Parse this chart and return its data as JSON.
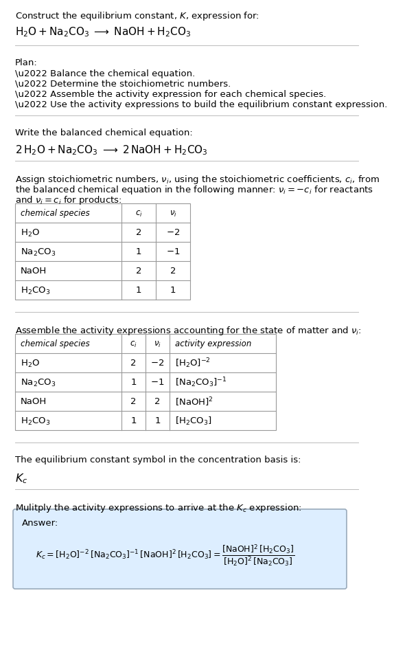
{
  "title_line1": "Construct the equilibrium constant, $K$, expression for:",
  "title_line2": "$\\mathrm{H_2O + Na_2CO_3 \\;\\longrightarrow\\; NaOH + H_2CO_3}$",
  "plan_header": "Plan:",
  "plan_items": [
    "\\u2022 Balance the chemical equation.",
    "\\u2022 Determine the stoichiometric numbers.",
    "\\u2022 Assemble the activity expression for each chemical species.",
    "\\u2022 Use the activity expressions to build the equilibrium constant expression."
  ],
  "balanced_header": "Write the balanced chemical equation:",
  "balanced_eq": "$\\mathrm{2\\,H_2O + Na_2CO_3 \\;\\longrightarrow\\; 2\\,NaOH + H_2CO_3}$",
  "stoich_line1": "Assign stoichiometric numbers, $\\nu_i$, using the stoichiometric coefficients, $c_i$, from",
  "stoich_line2": "the balanced chemical equation in the following manner: $\\nu_i = -c_i$ for reactants",
  "stoich_line3": "and $\\nu_i = c_i$ for products:",
  "table1_headers": [
    "chemical species",
    "$c_i$",
    "$\\nu_i$"
  ],
  "table1_rows": [
    [
      "$\\mathrm{H_2O}$",
      "2",
      "$-2$"
    ],
    [
      "$\\mathrm{Na_2CO_3}$",
      "1",
      "$-1$"
    ],
    [
      "NaOH",
      "2",
      "2"
    ],
    [
      "$\\mathrm{H_2CO_3}$",
      "1",
      "1"
    ]
  ],
  "activity_header": "Assemble the activity expressions accounting for the state of matter and $\\nu_i$:",
  "table2_headers": [
    "chemical species",
    "$c_i$",
    "$\\nu_i$",
    "activity expression"
  ],
  "table2_rows": [
    [
      "$\\mathrm{H_2O}$",
      "2",
      "$-2$",
      "$[\\mathrm{H_2O}]^{-2}$"
    ],
    [
      "$\\mathrm{Na_2CO_3}$",
      "1",
      "$-1$",
      "$[\\mathrm{Na_2CO_3}]^{-1}$"
    ],
    [
      "NaOH",
      "2",
      "2",
      "$[\\mathrm{NaOH}]^{2}$"
    ],
    [
      "$\\mathrm{H_2CO_3}$",
      "1",
      "1",
      "$[\\mathrm{H_2CO_3}]$"
    ]
  ],
  "kc_header": "The equilibrium constant symbol in the concentration basis is:",
  "kc_symbol": "$K_c$",
  "multiply_header": "Mulitply the activity expressions to arrive at the $K_c$ expression:",
  "answer_label": "Answer:",
  "bg_color": "#ffffff",
  "text_color": "#000000",
  "table_border_color": "#999999",
  "answer_bg_color": "#ddeeff",
  "answer_border_color": "#99aabb",
  "separator_color": "#bbbbbb",
  "font_size": 9.5,
  "small_font_size": 8.5
}
